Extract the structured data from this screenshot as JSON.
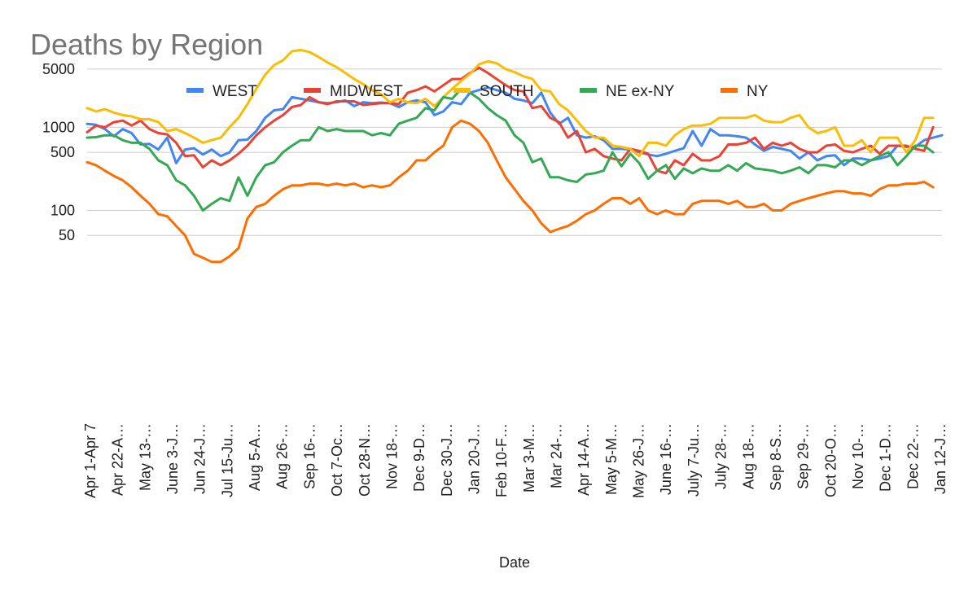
{
  "chart_data": {
    "type": "line",
    "title": "Deaths by Region",
    "xlabel": "Date",
    "ylabel": "",
    "yscale": "log",
    "yticks": [
      50,
      100,
      500,
      1000,
      5000
    ],
    "ylim": [
      20,
      13000
    ],
    "legend_position": "top",
    "grid": "horizontal",
    "x_tick_labels": [
      "Apr 1-Apr 7",
      "Apr 22-A…",
      "May 13-…",
      "June 3-J…",
      "Jun 24-J…",
      "Jul 15-Ju…",
      "Aug 5-A…",
      "Aug 26-…",
      "Sep 16-…",
      "Oct 7-Oc…",
      "Oct 28-N…",
      "Nov 18-…",
      "Dec 9-D…",
      "Dec 30-J…",
      "Jan 20-J…",
      "Feb 10-F…",
      "Mar 3-M…",
      "Mar 24-…",
      "Apr 14-A…",
      "May 5-M…",
      "May 26-J…",
      "June 16-…",
      "July 7-Ju…",
      "July 28-…",
      "Aug 18-…",
      "Sep 8-S…",
      "Sep 29-…",
      "Oct 20-O…",
      "Nov 10-…",
      "Dec 1-D…",
      "Dec 22-…",
      "Jan 12-J…"
    ],
    "series": [
      {
        "name": "WEST",
        "color": "#4285f4",
        "values": [
          1100,
          1070,
          950,
          780,
          950,
          850,
          620,
          630,
          540,
          750,
          370,
          540,
          560,
          470,
          540,
          450,
          500,
          700,
          710,
          900,
          1300,
          1600,
          1650,
          2300,
          2200,
          2100,
          2000,
          1950,
          2000,
          2100,
          1800,
          2000,
          1950,
          1980,
          1950,
          1750,
          2000,
          2100,
          2000,
          1400,
          1550,
          2000,
          1900,
          2600,
          2800,
          3000,
          2800,
          2600,
          2200,
          2100,
          1950,
          2600,
          1500,
          1100,
          1300,
          800,
          750,
          780,
          700,
          550,
          550,
          540,
          500,
          470,
          450,
          480,
          520,
          560,
          900,
          600,
          950,
          800,
          800,
          780,
          750,
          620,
          520,
          580,
          550,
          520,
          420,
          500,
          400,
          450,
          460,
          350,
          420,
          420,
          400,
          420,
          450,
          600,
          580,
          580,
          700,
          750,
          800
        ]
      },
      {
        "name": "MIDWEST",
        "color": "#ea4335",
        "values": [
          870,
          1050,
          1000,
          1150,
          1200,
          1050,
          1200,
          950,
          850,
          820,
          650,
          450,
          460,
          330,
          400,
          350,
          400,
          480,
          600,
          800,
          1000,
          1200,
          1400,
          1750,
          1850,
          2300,
          2000,
          1900,
          2050,
          2050,
          2050,
          1850,
          1900,
          1950,
          1950,
          1900,
          2600,
          2800,
          3100,
          2700,
          3200,
          3800,
          3800,
          4500,
          5200,
          4500,
          3800,
          3200,
          2800,
          2700,
          1700,
          1800,
          1300,
          1150,
          750,
          900,
          500,
          550,
          450,
          420,
          400,
          550,
          520,
          480,
          300,
          280,
          400,
          350,
          480,
          400,
          400,
          450,
          620,
          620,
          650,
          750,
          550,
          650,
          600,
          650,
          550,
          500,
          500,
          600,
          620,
          520,
          500,
          550,
          600,
          480,
          600,
          600,
          600,
          550,
          520,
          1000
        ]
      },
      {
        "name": "SOUTH",
        "color": "#fbbc04",
        "values": [
          1700,
          1550,
          1650,
          1500,
          1400,
          1350,
          1250,
          1250,
          1150,
          900,
          950,
          850,
          750,
          650,
          700,
          750,
          1000,
          1300,
          1900,
          2900,
          4300,
          5600,
          6400,
          8200,
          8500,
          8000,
          7000,
          6000,
          5300,
          4500,
          3800,
          3300,
          2800,
          2500,
          2000,
          2200,
          2000,
          1950,
          2200,
          1800,
          2300,
          2900,
          3600,
          4400,
          5700,
          6200,
          5900,
          5000,
          4600,
          4100,
          3800,
          2800,
          2700,
          1900,
          1600,
          1200,
          900,
          750,
          750,
          600,
          580,
          550,
          450,
          650,
          650,
          600,
          800,
          950,
          1050,
          1050,
          1100,
          1300,
          1300,
          1300,
          1300,
          1400,
          1200,
          1150,
          1150,
          1300,
          1400,
          1000,
          850,
          900,
          1000,
          600,
          600,
          700,
          500,
          750,
          750,
          750,
          500,
          700,
          1300,
          1300
        ]
      },
      {
        "name": "NE ex-NY",
        "color": "#34a853",
        "values": [
          750,
          760,
          800,
          800,
          700,
          650,
          650,
          550,
          400,
          350,
          230,
          200,
          150,
          100,
          120,
          140,
          130,
          250,
          150,
          250,
          350,
          380,
          500,
          600,
          700,
          700,
          1000,
          900,
          950,
          900,
          900,
          900,
          800,
          850,
          800,
          1100,
          1200,
          1300,
          1700,
          1600,
          2300,
          2200,
          2900,
          2600,
          2200,
          1700,
          1400,
          1200,
          800,
          650,
          380,
          420,
          250,
          250,
          230,
          220,
          270,
          280,
          300,
          500,
          340,
          480,
          370,
          240,
          300,
          350,
          240,
          320,
          280,
          320,
          300,
          300,
          350,
          300,
          370,
          320,
          310,
          300,
          280,
          300,
          330,
          280,
          350,
          350,
          330,
          400,
          400,
          350,
          400,
          450,
          500,
          350,
          450,
          600,
          600,
          500
        ]
      },
      {
        "name": "NY",
        "color": "#ff6d01",
        "values": [
          380,
          350,
          300,
          260,
          230,
          190,
          150,
          120,
          90,
          85,
          65,
          50,
          30,
          27,
          24,
          24,
          28,
          35,
          80,
          110,
          120,
          150,
          180,
          200,
          200,
          210,
          210,
          200,
          210,
          200,
          210,
          190,
          200,
          190,
          200,
          250,
          300,
          400,
          400,
          500,
          600,
          1000,
          1200,
          1100,
          900,
          650,
          400,
          250,
          180,
          130,
          100,
          70,
          55,
          60,
          65,
          75,
          90,
          100,
          120,
          140,
          140,
          120,
          140,
          100,
          90,
          100,
          90,
          90,
          120,
          130,
          130,
          130,
          120,
          130,
          110,
          110,
          120,
          100,
          100,
          120,
          130,
          140,
          150,
          160,
          170,
          170,
          160,
          160,
          150,
          180,
          200,
          200,
          210,
          210,
          220,
          190
        ]
      }
    ]
  }
}
